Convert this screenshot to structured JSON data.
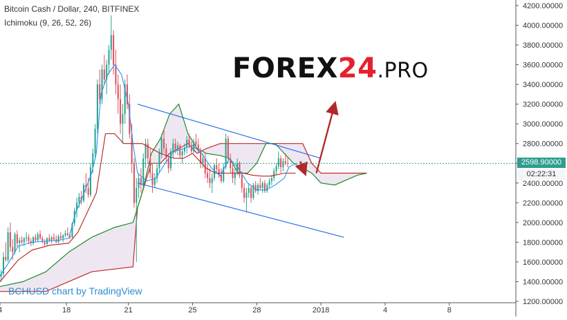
{
  "title": "Bitcoin Cash / Dollar, 240, BITFINEX",
  "indicator": "Ichimoku (9, 26, 52, 26)",
  "brand": {
    "word": "FOREX",
    "number": "24",
    "suffix": ".PRO"
  },
  "attribution": "BCHUSD chart by TradingView",
  "last_price": "2598.90000",
  "countdown": "02:22:31",
  "colors": {
    "up": "#2aa38c",
    "down": "#e0505e",
    "tenkan": "#2196f3",
    "kijun": "#b71c1c",
    "span_a": "#1d8a28",
    "span_b": "#c62828",
    "cloud": "#ece4ef",
    "channel": "#2f6fe8",
    "arrow_up": "#b0292c",
    "arrow_down": "#b0292c",
    "price_line": "#2e9e8e"
  },
  "chart_data": {
    "type": "candlestick",
    "symbol": "BCHUSD",
    "timeframe": "240",
    "ylim": [
      1200,
      4200
    ],
    "yticks": [
      1200,
      1400,
      1600,
      1800,
      2000,
      2200,
      2400,
      2600,
      2800,
      3000,
      3200,
      3400,
      3600,
      3800,
      4000,
      4200
    ],
    "y_tick_labels": [
      "1200.00000",
      "1400.00000",
      "1600.00000",
      "1800.00000",
      "2000.00000",
      "2200.00000",
      "2400.00000",
      "2600.00000",
      "2800.00000",
      "3000.00000",
      "3200.00000",
      "3400.00000",
      "3600.00000",
      "3800.00000",
      "4000.00000",
      "4200.00000"
    ],
    "xlim": [
      0,
      225
    ],
    "x_ticks": [
      {
        "x": 0,
        "label": "4"
      },
      {
        "x": 29,
        "label": "18"
      },
      {
        "x": 56,
        "label": "21"
      },
      {
        "x": 84,
        "label": "25"
      },
      {
        "x": 112,
        "label": "28"
      },
      {
        "x": 140,
        "label": "2018"
      },
      {
        "x": 168,
        "label": "4"
      },
      {
        "x": 196,
        "label": "8"
      }
    ],
    "last_price": 2598.9,
    "candles": [
      [
        1450,
        1520,
        1400,
        1480
      ],
      [
        1480,
        1700,
        1450,
        1650
      ],
      [
        1650,
        1800,
        1600,
        1620
      ],
      [
        1620,
        1950,
        1600,
        1900
      ],
      [
        1900,
        2000,
        1700,
        1750
      ],
      [
        1750,
        1830,
        1620,
        1700
      ],
      [
        1700,
        1900,
        1680,
        1880
      ],
      [
        1880,
        1920,
        1750,
        1790
      ],
      [
        1790,
        1850,
        1700,
        1820
      ],
      [
        1820,
        1860,
        1780,
        1800
      ],
      [
        1800,
        1850,
        1760,
        1840
      ],
      [
        1840,
        1900,
        1800,
        1850
      ],
      [
        1850,
        1880,
        1780,
        1810
      ],
      [
        1810,
        1840,
        1760,
        1790
      ],
      [
        1790,
        1860,
        1770,
        1850
      ],
      [
        1850,
        1880,
        1800,
        1820
      ],
      [
        1820,
        1900,
        1800,
        1880
      ],
      [
        1880,
        1920,
        1820,
        1840
      ],
      [
        1840,
        1860,
        1790,
        1800
      ],
      [
        1800,
        1830,
        1760,
        1780
      ],
      [
        1780,
        1850,
        1770,
        1840
      ],
      [
        1840,
        1880,
        1800,
        1820
      ],
      [
        1820,
        1860,
        1790,
        1850
      ],
      [
        1850,
        1890,
        1810,
        1830
      ],
      [
        1830,
        1870,
        1790,
        1800
      ],
      [
        1800,
        1880,
        1790,
        1860
      ],
      [
        1860,
        1900,
        1820,
        1840
      ],
      [
        1840,
        1880,
        1800,
        1870
      ],
      [
        1870,
        1920,
        1850,
        1890
      ],
      [
        1890,
        1950,
        1860,
        1870
      ],
      [
        1870,
        1900,
        1830,
        1850
      ],
      [
        1850,
        2000,
        1840,
        1990
      ],
      [
        1990,
        2150,
        1960,
        2120
      ],
      [
        2120,
        2250,
        2050,
        2200
      ],
      [
        2200,
        2300,
        2150,
        2260
      ],
      [
        2260,
        2320,
        2180,
        2220
      ],
      [
        2220,
        2400,
        2200,
        2380
      ],
      [
        2380,
        2500,
        2300,
        2350
      ],
      [
        2350,
        2450,
        2250,
        2280
      ],
      [
        2280,
        2600,
        2260,
        2560
      ],
      [
        2560,
        2750,
        2500,
        2700
      ],
      [
        2700,
        3000,
        2650,
        2950
      ],
      [
        2950,
        3450,
        2900,
        3400
      ],
      [
        3400,
        3550,
        3200,
        3250
      ],
      [
        3250,
        3600,
        3200,
        3550
      ],
      [
        3550,
        3700,
        3400,
        3450
      ],
      [
        3450,
        3650,
        3300,
        3600
      ],
      [
        3600,
        3800,
        3500,
        3750
      ],
      [
        3750,
        4100,
        3650,
        3900
      ],
      [
        3900,
        3950,
        3500,
        3600
      ],
      [
        3600,
        3750,
        3300,
        3400
      ],
      [
        3400,
        3500,
        3100,
        3250
      ],
      [
        3250,
        3400,
        2900,
        3000
      ],
      [
        3000,
        3200,
        2800,
        3100
      ],
      [
        3100,
        3450,
        3000,
        3400
      ],
      [
        3400,
        3500,
        3150,
        3200
      ],
      [
        3200,
        3300,
        2850,
        2900
      ],
      [
        2900,
        3000,
        2500,
        2600
      ],
      [
        2600,
        2650,
        2150,
        2200
      ],
      [
        2200,
        2450,
        1600,
        2350
      ],
      [
        2350,
        2500,
        2250,
        2450
      ],
      [
        2450,
        2550,
        2300,
        2380
      ],
      [
        2380,
        2700,
        2350,
        2650
      ],
      [
        2650,
        2850,
        2550,
        2800
      ],
      [
        2800,
        2850,
        2600,
        2650
      ],
      [
        2650,
        2750,
        2450,
        2500
      ],
      [
        2500,
        2600,
        2300,
        2380
      ],
      [
        2380,
        2500,
        2350,
        2450
      ],
      [
        2450,
        2600,
        2400,
        2550
      ],
      [
        2550,
        2750,
        2500,
        2700
      ],
      [
        2700,
        2900,
        2650,
        2850
      ],
      [
        2850,
        2950,
        2700,
        2750
      ],
      [
        2750,
        2800,
        2600,
        2650
      ],
      [
        2650,
        2700,
        2500,
        2550
      ],
      [
        2550,
        2750,
        2520,
        2720
      ],
      [
        2720,
        2850,
        2650,
        2800
      ],
      [
        2800,
        2850,
        2700,
        2740
      ],
      [
        2740,
        2820,
        2680,
        2780
      ],
      [
        2780,
        2800,
        2650,
        2680
      ],
      [
        2680,
        2750,
        2600,
        2720
      ],
      [
        2720,
        2800,
        2680,
        2760
      ],
      [
        2760,
        2880,
        2700,
        2840
      ],
      [
        2840,
        2900,
        2750,
        2780
      ],
      [
        2780,
        2820,
        2700,
        2720
      ],
      [
        2720,
        2850,
        2700,
        2820
      ],
      [
        2820,
        2900,
        2760,
        2790
      ],
      [
        2790,
        2850,
        2700,
        2730
      ],
      [
        2730,
        2760,
        2550,
        2600
      ],
      [
        2600,
        2700,
        2550,
        2650
      ],
      [
        2650,
        2700,
        2450,
        2500
      ],
      [
        2500,
        2600,
        2400,
        2450
      ],
      [
        2450,
        2550,
        2350,
        2400
      ],
      [
        2400,
        2500,
        2300,
        2450
      ],
      [
        2450,
        2600,
        2420,
        2580
      ],
      [
        2580,
        2650,
        2500,
        2540
      ],
      [
        2540,
        2600,
        2450,
        2480
      ],
      [
        2480,
        2550,
        2400,
        2420
      ],
      [
        2420,
        2600,
        2400,
        2560
      ],
      [
        2560,
        2900,
        2540,
        2850
      ],
      [
        2850,
        2880,
        2600,
        2650
      ],
      [
        2650,
        2700,
        2500,
        2550
      ],
      [
        2550,
        2600,
        2400,
        2450
      ],
      [
        2450,
        2550,
        2380,
        2500
      ],
      [
        2500,
        2650,
        2480,
        2600
      ],
      [
        2600,
        2620,
        2450,
        2480
      ],
      [
        2480,
        2520,
        2300,
        2350
      ],
      [
        2350,
        2400,
        2200,
        2250
      ],
      [
        2250,
        2350,
        2100,
        2300
      ],
      [
        2300,
        2400,
        2250,
        2350
      ],
      [
        2350,
        2380,
        2200,
        2250
      ],
      [
        2250,
        2400,
        2230,
        2380
      ],
      [
        2380,
        2420,
        2300,
        2320
      ],
      [
        2320,
        2400,
        2280,
        2380
      ],
      [
        2380,
        2450,
        2330,
        2350
      ],
      [
        2350,
        2420,
        2300,
        2400
      ],
      [
        2400,
        2430,
        2300,
        2320
      ],
      [
        2320,
        2400,
        2300,
        2380
      ],
      [
        2380,
        2450,
        2350,
        2420
      ],
      [
        2420,
        2480,
        2380,
        2450
      ],
      [
        2450,
        2550,
        2420,
        2520
      ],
      [
        2520,
        2600,
        2480,
        2570
      ],
      [
        2570,
        2720,
        2540,
        2650
      ],
      [
        2650,
        2680,
        2500,
        2560
      ],
      [
        2560,
        2650,
        2520,
        2620
      ],
      [
        2620,
        2700,
        2580,
        2600
      ],
      [
        2600,
        2660,
        2560,
        2598.9
      ]
    ],
    "ichimoku": {
      "tenkan": [
        [
          0,
          1460
        ],
        [
          4,
          1600
        ],
        [
          8,
          1760
        ],
        [
          14,
          1800
        ],
        [
          20,
          1810
        ],
        [
          26,
          1820
        ],
        [
          30,
          1840
        ],
        [
          33,
          2100
        ],
        [
          36,
          2260
        ],
        [
          40,
          2500
        ],
        [
          42,
          2700
        ],
        [
          44,
          3300
        ],
        [
          47,
          3500
        ],
        [
          50,
          3600
        ],
        [
          53,
          3500
        ],
        [
          56,
          3200
        ],
        [
          58,
          2800
        ],
        [
          60,
          2500
        ],
        [
          64,
          2420
        ],
        [
          68,
          2450
        ],
        [
          72,
          2600
        ],
        [
          76,
          2720
        ],
        [
          80,
          2750
        ],
        [
          84,
          2780
        ],
        [
          88,
          2700
        ],
        [
          92,
          2560
        ],
        [
          96,
          2470
        ],
        [
          100,
          2650
        ],
        [
          104,
          2550
        ],
        [
          108,
          2400
        ],
        [
          112,
          2330
        ],
        [
          116,
          2330
        ],
        [
          120,
          2380
        ],
        [
          124,
          2450
        ],
        [
          126,
          2560
        ],
        [
          129,
          2600
        ]
      ],
      "kijun": [
        [
          0,
          1400
        ],
        [
          8,
          1620
        ],
        [
          14,
          1720
        ],
        [
          22,
          1770
        ],
        [
          30,
          1790
        ],
        [
          34,
          1900
        ],
        [
          38,
          2100
        ],
        [
          42,
          2300
        ],
        [
          46,
          2900
        ],
        [
          50,
          2900
        ],
        [
          54,
          2800
        ],
        [
          58,
          2800
        ],
        [
          62,
          2800
        ],
        [
          66,
          2750
        ],
        [
          70,
          2700
        ],
        [
          76,
          2650
        ],
        [
          80,
          2650
        ],
        [
          84,
          2700
        ],
        [
          90,
          2550
        ],
        [
          94,
          2500
        ],
        [
          100,
          2500
        ],
        [
          106,
          2500
        ],
        [
          110,
          2480
        ],
        [
          114,
          2470
        ],
        [
          118,
          2470
        ],
        [
          124,
          2500
        ],
        [
          129,
          2500
        ]
      ],
      "span_a": [
        [
          0,
          1350
        ],
        [
          10,
          1400
        ],
        [
          20,
          1500
        ],
        [
          30,
          1700
        ],
        [
          40,
          1850
        ],
        [
          50,
          1950
        ],
        [
          58,
          2000
        ],
        [
          62,
          2300
        ],
        [
          66,
          2700
        ],
        [
          70,
          2850
        ],
        [
          74,
          3100
        ],
        [
          78,
          3200
        ],
        [
          82,
          2900
        ],
        [
          86,
          2750
        ],
        [
          90,
          2700
        ],
        [
          96,
          2680
        ],
        [
          100,
          2650
        ],
        [
          104,
          2500
        ],
        [
          108,
          2500
        ],
        [
          112,
          2600
        ],
        [
          116,
          2800
        ],
        [
          120,
          2800
        ],
        [
          124,
          2700
        ],
        [
          128,
          2600
        ],
        [
          132,
          2550
        ],
        [
          136,
          2500
        ],
        [
          140,
          2400
        ],
        [
          146,
          2380
        ],
        [
          150,
          2420
        ],
        [
          156,
          2480
        ],
        [
          160,
          2500
        ]
      ],
      "span_b": [
        [
          0,
          1300
        ],
        [
          20,
          1300
        ],
        [
          40,
          1500
        ],
        [
          58,
          1550
        ],
        [
          60,
          2150
        ],
        [
          66,
          2600
        ],
        [
          70,
          2600
        ],
        [
          74,
          2700
        ],
        [
          78,
          2750
        ],
        [
          82,
          2800
        ],
        [
          86,
          2700
        ],
        [
          90,
          2750
        ],
        [
          96,
          2800
        ],
        [
          100,
          2800
        ],
        [
          106,
          2800
        ],
        [
          112,
          2800
        ],
        [
          116,
          2800
        ],
        [
          120,
          2800
        ],
        [
          124,
          2800
        ],
        [
          128,
          2800
        ],
        [
          132,
          2800
        ],
        [
          136,
          2600
        ],
        [
          140,
          2500
        ],
        [
          146,
          2500
        ],
        [
          150,
          2500
        ],
        [
          156,
          2500
        ],
        [
          160,
          2500
        ]
      ]
    },
    "annotations": {
      "channel_upper": [
        [
          60,
          3200
        ],
        [
          140,
          2650
        ]
      ],
      "channel_lower": [
        [
          60,
          2400
        ],
        [
          150,
          1850
        ]
      ],
      "arrow_up": [
        [
          138,
          2500
        ],
        [
          146,
          3200
        ]
      ],
      "arrow_down": [
        [
          131,
          2620
        ],
        [
          133,
          2500
        ]
      ]
    }
  }
}
